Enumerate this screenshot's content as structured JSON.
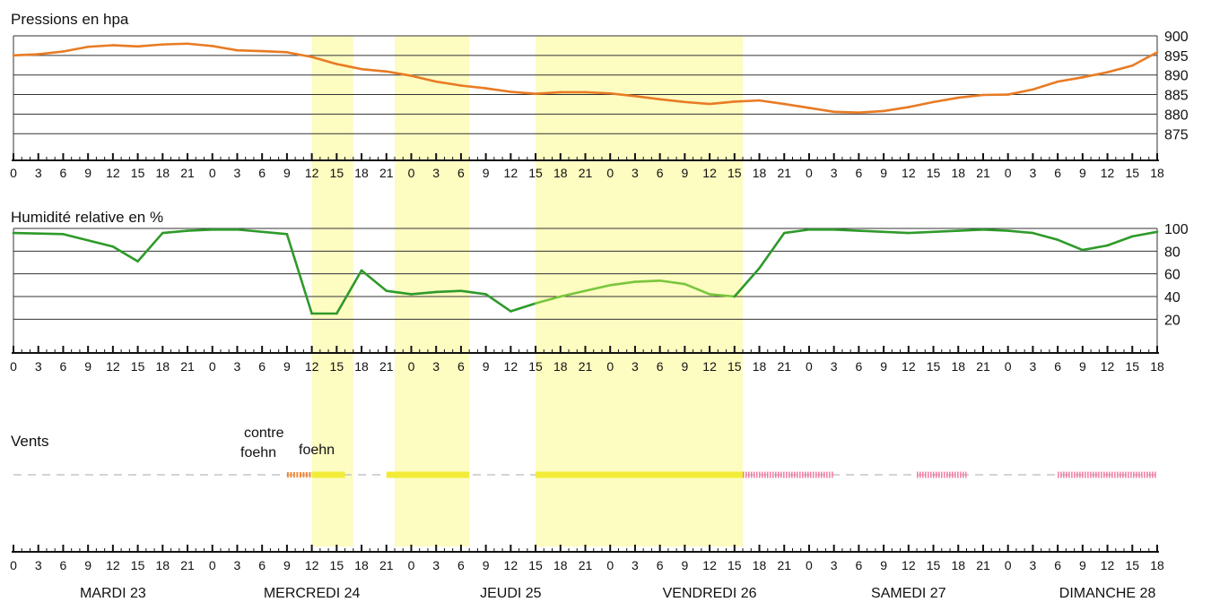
{
  "chart_data": {
    "type": "line",
    "hour_ticks": [
      "0",
      "3",
      "6",
      "9",
      "12",
      "15",
      "18",
      "21",
      "0",
      "3",
      "6",
      "9",
      "12",
      "15",
      "18",
      "21",
      "0",
      "3",
      "6",
      "9",
      "12",
      "15",
      "18",
      "21",
      "0",
      "3",
      "6",
      "9",
      "12",
      "15",
      "18",
      "21",
      "0",
      "3",
      "6",
      "9",
      "12",
      "15",
      "18",
      "21",
      "0",
      "3",
      "6",
      "9",
      "12",
      "15",
      "18"
    ],
    "days": [
      "MARDI 23",
      "MERCREDI 24",
      "JEUDI 25",
      "VENDREDI 26",
      "SAMEDI 27",
      "DIMANCHE 28"
    ],
    "colors": {
      "pressure": "#e87b24",
      "humidity": "#2e9a2a",
      "humidity_light": "#79c63c",
      "band": "#fdfcc1",
      "foehn": "#f2ec38",
      "contre_foehn": "#f08a3a",
      "wind_pink": "#f27aa0",
      "dash": "#bbbbbb",
      "grid": "#333333"
    },
    "pressure": {
      "title": "Pressions en hpa",
      "yticks": [
        "900",
        "895",
        "890",
        "885",
        "880",
        "875"
      ],
      "ylim": [
        873,
        900
      ],
      "x": [
        0,
        3,
        6,
        9,
        12,
        15,
        18,
        21,
        24,
        27,
        30,
        33,
        36,
        39,
        42,
        45,
        48,
        51,
        54,
        57,
        60,
        63,
        66,
        69,
        72,
        75,
        78,
        81,
        84,
        87,
        90,
        93,
        96,
        99,
        102,
        105,
        108,
        111,
        114,
        117,
        120,
        123,
        126,
        129,
        132,
        135,
        138
      ],
      "values": [
        895,
        895.3,
        896,
        897.2,
        897.6,
        897.3,
        897.8,
        898,
        897.4,
        896.3,
        896.1,
        895.8,
        894.6,
        892.8,
        891.5,
        890.9,
        889.8,
        888.3,
        887.3,
        886.6,
        885.7,
        885.2,
        885.6,
        885.6,
        885.3,
        884.6,
        883.8,
        883.1,
        882.6,
        883.2,
        883.5,
        882.6,
        881.6,
        880.6,
        880.4,
        880.8,
        881.8,
        883.1,
        884.2,
        884.9,
        885,
        886.3,
        888.3,
        889.4,
        890.7,
        892.4,
        895.8
      ]
    },
    "humidity": {
      "title": "Humidité relative en %",
      "yticks": [
        "100",
        "80",
        "60",
        "40",
        "20"
      ],
      "ylim": [
        10,
        100
      ],
      "x": [
        0,
        6,
        12,
        15,
        18,
        21,
        24,
        27,
        33,
        36,
        39,
        42,
        45,
        48,
        51,
        54,
        57,
        60,
        63,
        66,
        69,
        72,
        75,
        78,
        81,
        84,
        87,
        90,
        93,
        96,
        99,
        102,
        105,
        108,
        111,
        114,
        117,
        120,
        123,
        126,
        129,
        132,
        135,
        138
      ],
      "values": [
        96,
        95,
        84,
        71,
        96,
        98,
        99,
        99,
        95,
        25,
        25,
        63,
        45,
        42,
        44,
        45,
        42,
        27,
        34,
        40,
        45,
        50,
        53,
        54,
        51,
        42,
        40,
        65,
        96,
        99,
        99,
        98,
        97,
        96,
        97,
        98,
        99,
        98,
        96,
        90,
        81,
        85,
        93,
        97
      ]
    },
    "bands": [
      [
        36,
        41
      ],
      [
        46,
        55
      ],
      [
        63,
        88
      ]
    ],
    "wind": {
      "label": "Vents",
      "annotations": [
        "contre\nfoehn",
        "foehn"
      ],
      "contre_foehn": [
        [
          33,
          36
        ]
      ],
      "foehn": [
        [
          36,
          40
        ],
        [
          45,
          55
        ],
        [
          63,
          88
        ]
      ],
      "pink": [
        [
          88,
          99
        ],
        [
          109,
          115
        ],
        [
          126,
          138
        ]
      ]
    }
  }
}
